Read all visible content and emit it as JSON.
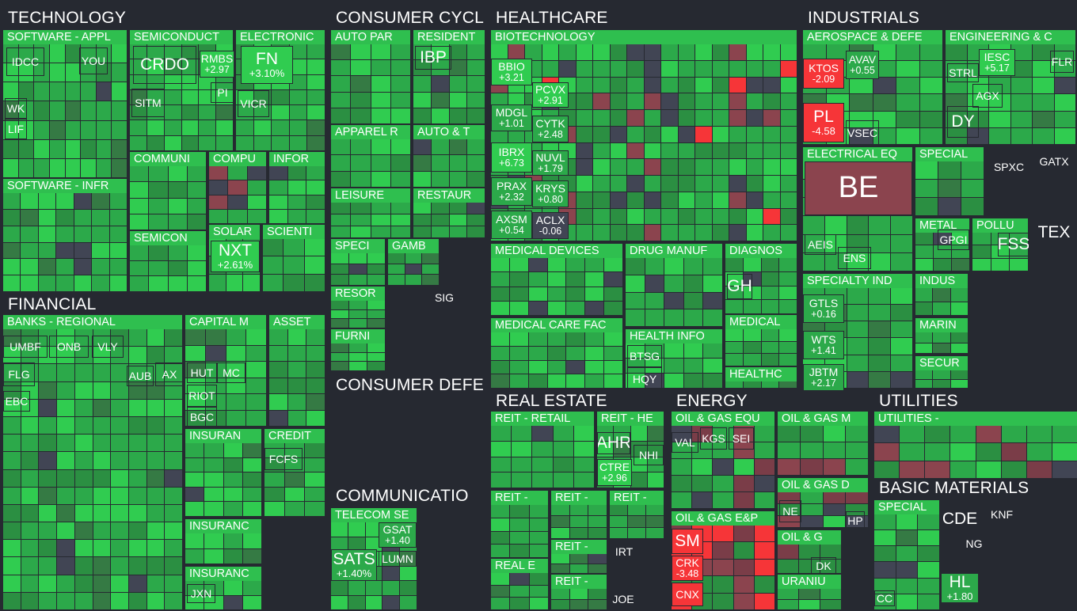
{
  "colors": {
    "bg": "#262931",
    "up_strong": "#30cc50",
    "up": "#2ca94a",
    "up_mid": "#2b8f42",
    "up_weak": "#357a44",
    "flat": "#414554",
    "down_weak": "#7a3d48",
    "down": "#8b444e",
    "down_strong": "#f63538"
  },
  "sectors": [
    {
      "name": "TECHNOLOGY",
      "industries": [
        "SOFTWARE - APPL",
        "SEMICONDUCT",
        "ELECTRONIC",
        "SOFTWARE - INFR",
        "COMMUNI",
        "COMPU",
        "INFOR",
        "SEMICON",
        "SOLAR",
        "SCIENTI"
      ]
    },
    {
      "name": "CONSUMER CYCL",
      "industries": [
        "AUTO PAR",
        "RESIDENT",
        "APPAREL R",
        "AUTO & T",
        "LEISURE",
        "RESTAUR",
        "SPECI",
        "GAMB",
        "RESOR",
        "FURNI"
      ]
    },
    {
      "name": "HEALTHCARE",
      "industries": [
        "BIOTECHNOLOGY",
        "MEDICAL DEVICES",
        "DRUG MANUF",
        "DIAGNOS",
        "MEDICAL CARE FAC",
        "HEALTH INFO",
        "MEDICAL",
        "HEALTHC"
      ]
    },
    {
      "name": "INDUSTRIALS",
      "industries": [
        "AEROSPACE & DEFE",
        "ENGINEERING & C",
        "ELECTRICAL EQ",
        "SPECIAL",
        "METAL",
        "POLLU",
        "SPECIALTY IND",
        "INDUS",
        "MARIN",
        "SECUR"
      ]
    },
    {
      "name": "FINANCIAL",
      "industries": [
        "BANKS - REGIONAL",
        "CAPITAL M",
        "ASSET",
        "INSURAN",
        "CREDIT",
        "INSURANC",
        "INSURANC"
      ]
    },
    {
      "name": "CONSUMER DEFE",
      "industries": []
    },
    {
      "name": "COMMUNICATIO",
      "industries": [
        "TELECOM SE"
      ]
    },
    {
      "name": "REAL ESTATE",
      "industries": [
        "REIT - RETAIL",
        "REIT - HE",
        "REIT -",
        "REIT -",
        "REIT -",
        "REIT -",
        "REAL E",
        "REIT -"
      ]
    },
    {
      "name": "ENERGY",
      "industries": [
        "OIL & GAS EQU",
        "OIL & GAS M",
        "OIL & GAS D",
        "OIL & GAS E&P",
        "OIL & G",
        "URANIU"
      ]
    },
    {
      "name": "UTILITIES",
      "industries": [
        "UTILITIES -"
      ]
    },
    {
      "name": "BASIC MATERIALS",
      "industries": [
        "SPECIAL"
      ]
    }
  ],
  "tickers": [
    {
      "s": "IDCC"
    },
    {
      "s": "YOU"
    },
    {
      "s": "WK"
    },
    {
      "s": "LIF"
    },
    {
      "s": "CRDO"
    },
    {
      "s": "RMBS",
      "c": "+2.97"
    },
    {
      "s": "SITM"
    },
    {
      "s": "PI"
    },
    {
      "s": "FN",
      "c": "+3.10%"
    },
    {
      "s": "VICR"
    },
    {
      "s": "NXT",
      "c": "+2.61%"
    },
    {
      "s": "IBP"
    },
    {
      "s": "BBIO",
      "c": "+3.21"
    },
    {
      "s": "PCVX",
      "c": "+2.91"
    },
    {
      "s": "MDGL",
      "c": "+1.01"
    },
    {
      "s": "CYTK",
      "c": "+2.48"
    },
    {
      "s": "IBRX",
      "c": "+6.73"
    },
    {
      "s": "NUVL",
      "c": "+1.79"
    },
    {
      "s": "PRAX",
      "c": "+2.32"
    },
    {
      "s": "KRYS",
      "c": "+0.80"
    },
    {
      "s": "AXSM",
      "c": "+0.54"
    },
    {
      "s": "ACLX",
      "c": "-0.06"
    },
    {
      "s": "KTOS",
      "c": "-2.09"
    },
    {
      "s": "AVAV",
      "c": "+0.55"
    },
    {
      "s": "PL",
      "c": "-4.58"
    },
    {
      "s": "VSEC"
    },
    {
      "s": "STRL"
    },
    {
      "s": "IESC",
      "c": "+5.17"
    },
    {
      "s": "FLR"
    },
    {
      "s": "AGX"
    },
    {
      "s": "DY"
    },
    {
      "s": "BE"
    },
    {
      "s": "AEIS"
    },
    {
      "s": "ENS"
    },
    {
      "s": "SPXC"
    },
    {
      "s": "GATX"
    },
    {
      "s": "GPGI"
    },
    {
      "s": "FSS"
    },
    {
      "s": "TEX"
    },
    {
      "s": "GTLS",
      "c": "+0.16"
    },
    {
      "s": "WTS",
      "c": "+1.41"
    },
    {
      "s": "JBTM",
      "c": "+2.17"
    },
    {
      "s": "UMBF"
    },
    {
      "s": "ONB"
    },
    {
      "s": "VLY"
    },
    {
      "s": "FLG"
    },
    {
      "s": "AUB"
    },
    {
      "s": "AX"
    },
    {
      "s": "EBC"
    },
    {
      "s": "HUT"
    },
    {
      "s": "MC"
    },
    {
      "s": "RIOT"
    },
    {
      "s": "BGC"
    },
    {
      "s": "FCFS"
    },
    {
      "s": "JXN"
    },
    {
      "s": "SIG"
    },
    {
      "s": "GH"
    },
    {
      "s": "BTSG"
    },
    {
      "s": "HQY"
    },
    {
      "s": "SATS",
      "c": "+1.40%"
    },
    {
      "s": "GSAT",
      "c": "+1.40"
    },
    {
      "s": "LUMN"
    },
    {
      "s": "AHR"
    },
    {
      "s": "NHI"
    },
    {
      "s": "CTRE",
      "c": "+2.96"
    },
    {
      "s": "IRT"
    },
    {
      "s": "JOE"
    },
    {
      "s": "VAL"
    },
    {
      "s": "KGS"
    },
    {
      "s": "SEI"
    },
    {
      "s": "NE"
    },
    {
      "s": "HP"
    },
    {
      "s": "SM"
    },
    {
      "s": "CRK",
      "c": "-3.48"
    },
    {
      "s": "CNX"
    },
    {
      "s": "DK"
    },
    {
      "s": "CDE"
    },
    {
      "s": "KNF"
    },
    {
      "s": "NG"
    },
    {
      "s": "HL",
      "c": "+1.80"
    },
    {
      "s": "CC"
    }
  ]
}
